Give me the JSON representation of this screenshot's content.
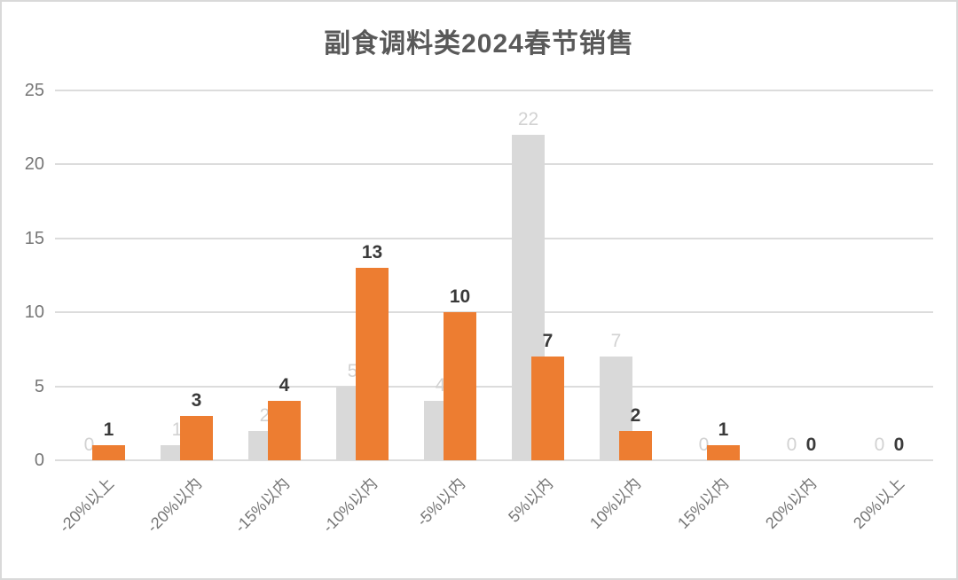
{
  "title": "副食调料类2024春节销售",
  "colors": {
    "background": "#FFFFFF",
    "border": "#D9D9D9",
    "title_text": "#595959",
    "axis_text": "#767676",
    "gridline": "#DCDCDC",
    "gray_bar": "#D9D9D9",
    "orange_bar": "#ED7D31",
    "gray_data_label": "#D2D2D2",
    "orange_data_label": "#3A3A3A"
  },
  "chart_data": {
    "type": "bar",
    "title": "副食调料类2024春节销售",
    "categories": [
      "-20%以上",
      "-20%以内",
      "-15%以内",
      "-10%以内",
      "-5%以内",
      "5%以内",
      "10%以内",
      "15%以内",
      "20%以内",
      "20%以上"
    ],
    "series": [
      {
        "id": "gray",
        "color": "#D9D9D9",
        "label_color": "#D2D2D2",
        "label_bold": false,
        "values": [
          0,
          1,
          2,
          5,
          4,
          22,
          7,
          0,
          0,
          0
        ]
      },
      {
        "id": "orange",
        "color": "#ED7D31",
        "label_color": "#3A3A3A",
        "label_bold": true,
        "values": [
          1,
          3,
          4,
          13,
          10,
          7,
          2,
          1,
          0,
          0
        ]
      }
    ],
    "y_ticks": [
      0,
      5,
      10,
      15,
      20,
      25
    ],
    "ylim": [
      0,
      25
    ],
    "grid": true,
    "legend_position": "none",
    "x_label_rotation": -45,
    "data_labels": "outside-end"
  }
}
